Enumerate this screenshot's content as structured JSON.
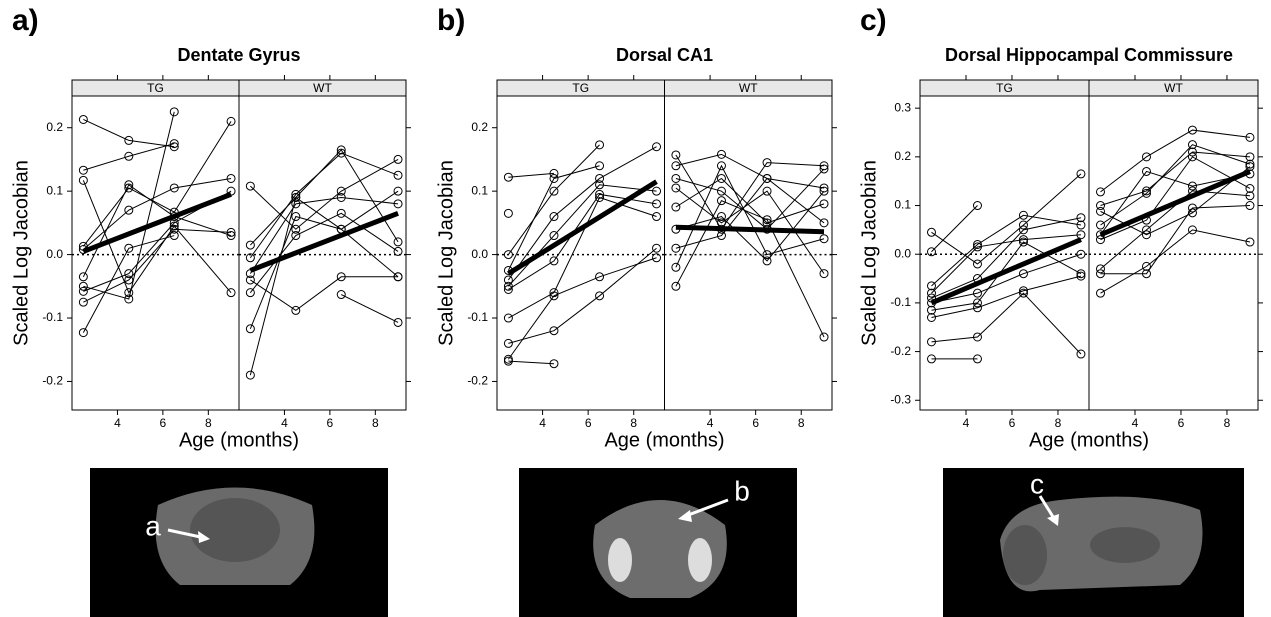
{
  "chart_data": [
    {
      "type": "line",
      "panel_label": "a)",
      "title": "Dentate Gyrus",
      "xlabel": "Age (months)",
      "ylabel": "Scaled Log Jacobian",
      "xlim": [
        2,
        9.35
      ],
      "xticks": [
        4,
        6,
        8
      ],
      "ylim": [
        -0.245,
        0.25
      ],
      "yticks": [
        -0.2,
        -0.1,
        {
          "value": 0,
          "label": "0.0"
        },
        0.1,
        0.2
      ],
      "reference_line": 0,
      "x": [
        2.5,
        4.5,
        6.5,
        9
      ],
      "fit_x": [
        2.5,
        9
      ],
      "panels": [
        {
          "name": "TG",
          "fit": [
            0.005,
            0.095
          ],
          "series": [
            {
              "values": [
                0.213,
                0.18,
                0.17,
                null
              ]
            },
            {
              "values": [
                0.133,
                0.155,
                0.175,
                null
              ]
            },
            {
              "values": [
                0.013,
                0.105,
                0.067,
                0.21
              ]
            },
            {
              "values": [
                -0.05,
                -0.07,
                0.225,
                null
              ]
            },
            {
              "values": [
                0.008,
                0.07,
                0.105,
                0.12
              ]
            },
            {
              "values": [
                -0.035,
                0.11,
                0.06,
                0.03
              ]
            },
            {
              "values": [
                -0.058,
                -0.03,
                0.05,
                0.1
              ]
            },
            {
              "values": [
                -0.075,
                -0.04,
                0.04,
                0.035
              ]
            },
            {
              "values": [
                -0.123,
                0.01,
                0.03,
                null
              ]
            },
            {
              "values": [
                0.117,
                -0.06,
                0.045,
                -0.06
              ]
            }
          ]
        },
        {
          "name": "WT",
          "fit": [
            -0.025,
            0.065
          ],
          "series": [
            {
              "values": [
                0.108,
                0.04,
                0.1,
                0.15
              ]
            },
            {
              "values": [
                0.015,
                0.09,
                0.165,
                0.02
              ]
            },
            {
              "values": [
                -0.005,
                0.095,
                0.16,
                0.125
              ]
            },
            {
              "values": [
                -0.03,
                0.08,
                0.09,
                0.08
              ]
            },
            {
              "values": [
                -0.06,
                0.03,
                0.065,
                0.005
              ]
            },
            {
              "values": [
                -0.117,
                0.06,
                0.04,
                -0.035
              ]
            },
            {
              "values": [
                -0.19,
                0.09,
                0.04,
                0.1
              ]
            },
            {
              "values": [
                -0.04,
                -0.088,
                -0.035,
                -0.035
              ]
            },
            {
              "values": [
                null,
                null,
                -0.063,
                -0.107
              ]
            }
          ]
        }
      ]
    },
    {
      "type": "line",
      "panel_label": "b)",
      "title": "Dorsal CA1",
      "xlabel": "Age (months)",
      "ylabel": "Scaled Log Jacobian",
      "xlim": [
        2,
        9.35
      ],
      "xticks": [
        4,
        6,
        8
      ],
      "ylim": [
        -0.245,
        0.25
      ],
      "yticks": [
        -0.2,
        -0.1,
        {
          "value": 0,
          "label": "0.0"
        },
        0.1,
        0.2
      ],
      "reference_line": 0,
      "x": [
        2.5,
        4.5,
        6.5,
        9
      ],
      "fit_x": [
        2.5,
        9
      ],
      "panels": [
        {
          "name": "TG",
          "fit": [
            -0.03,
            0.115
          ],
          "series": [
            {
              "values": [
                0.122,
                0.128,
                null,
                null
              ]
            },
            {
              "values": [
                0.065,
                null,
                null,
                null
              ]
            },
            {
              "values": [
                0.0,
                0.1,
                0.173,
                null
              ]
            },
            {
              "values": [
                -0.025,
                0.12,
                0.14,
                null
              ]
            },
            {
              "values": [
                -0.04,
                0.06,
                0.12,
                0.17
              ]
            },
            {
              "values": [
                -0.05,
                0.03,
                0.11,
                0.1
              ]
            },
            {
              "values": [
                -0.055,
                -0.01,
                0.095,
                0.08
              ]
            },
            {
              "values": [
                -0.1,
                -0.06,
                0.09,
                0.06
              ]
            },
            {
              "values": [
                -0.14,
                -0.12,
                -0.065,
                0.01
              ]
            },
            {
              "values": [
                -0.165,
                -0.065,
                -0.035,
                -0.005
              ]
            },
            {
              "values": [
                -0.168,
                -0.172,
                null,
                null
              ]
            }
          ]
        },
        {
          "name": "WT",
          "fit": [
            0.043,
            0.036
          ],
          "series": [
            {
              "values": [
                0.157,
                0.04,
                0.145,
                0.14
              ]
            },
            {
              "values": [
                0.14,
                0.158,
                0.12,
                0.105
              ]
            },
            {
              "values": [
                0.12,
                0.1,
                0.04,
                0.135
              ]
            },
            {
              "values": [
                0.105,
                0.05,
                0.1,
                -0.03
              ]
            },
            {
              "values": [
                0.075,
                0.12,
                0.05,
                0.08
              ]
            },
            {
              "values": [
                0.04,
                0.06,
                -0.01,
                0.1
              ]
            },
            {
              "values": [
                0.01,
                0.03,
                0.12,
                0.05
              ]
            },
            {
              "values": [
                -0.02,
                0.14,
                0.0,
                0.025
              ]
            },
            {
              "values": [
                -0.05,
                0.085,
                0.055,
                -0.13
              ]
            }
          ]
        }
      ]
    },
    {
      "type": "line",
      "panel_label": "c)",
      "title": "Dorsal Hippocampal Commissure",
      "xlabel": "Age (months)",
      "ylabel": "Scaled Log Jacobian",
      "xlim": [
        2,
        9.35
      ],
      "xticks": [
        4,
        6,
        8
      ],
      "ylim": [
        -0.32,
        0.325
      ],
      "yticks": [
        -0.3,
        -0.2,
        -0.1,
        {
          "value": 0,
          "label": "0.0"
        },
        0.1,
        0.2,
        0.3
      ],
      "reference_line": 0,
      "x": [
        2.5,
        4.5,
        6.5,
        9
      ],
      "fit_x": [
        2.5,
        9
      ],
      "panels": [
        {
          "name": "TG",
          "fit": [
            -0.1,
            0.03
          ],
          "series": [
            {
              "values": [
                0.045,
                -0.02,
                0.06,
                0.165
              ]
            },
            {
              "values": [
                0.005,
                0.1,
                null,
                null
              ]
            },
            {
              "values": [
                -0.065,
                0.02,
                0.08,
                0.06
              ]
            },
            {
              "values": [
                -0.08,
                0.015,
                0.03,
                0.04
              ]
            },
            {
              "values": [
                -0.09,
                -0.05,
                0.05,
                0.075
              ]
            },
            {
              "values": [
                -0.1,
                -0.08,
                -0.04,
                0.0
              ]
            },
            {
              "values": [
                -0.115,
                -0.1,
                0.025,
                -0.04
              ]
            },
            {
              "values": [
                -0.13,
                -0.11,
                -0.075,
                -0.045
              ]
            },
            {
              "values": [
                -0.18,
                -0.17,
                -0.08,
                -0.205
              ]
            },
            {
              "values": [
                -0.215,
                -0.215,
                null,
                null
              ]
            }
          ]
        },
        {
          "name": "WT",
          "fit": [
            0.04,
            0.17
          ],
          "series": [
            {
              "values": [
                0.128,
                0.2,
                0.255,
                0.24
              ]
            },
            {
              "values": [
                0.1,
                0.13,
                0.21,
                0.2
              ]
            },
            {
              "values": [
                0.06,
                0.125,
                0.225,
                0.185
              ]
            },
            {
              "values": [
                0.04,
                0.17,
                0.14,
                0.165
              ]
            },
            {
              "values": [
                0.03,
                0.07,
                0.2,
                0.135
              ]
            },
            {
              "values": [
                -0.03,
                0.05,
                0.13,
                0.12
              ]
            },
            {
              "values": [
                -0.04,
                -0.04,
                0.095,
                0.1
              ]
            },
            {
              "values": [
                -0.08,
                -0.025,
                0.05,
                0.025
              ]
            },
            {
              "values": [
                0.088,
                0.04,
                0.085,
                0.18
              ]
            }
          ]
        }
      ]
    }
  ],
  "figure_images": [
    {
      "label": "a"
    },
    {
      "label": "b"
    },
    {
      "label": "c"
    }
  ]
}
